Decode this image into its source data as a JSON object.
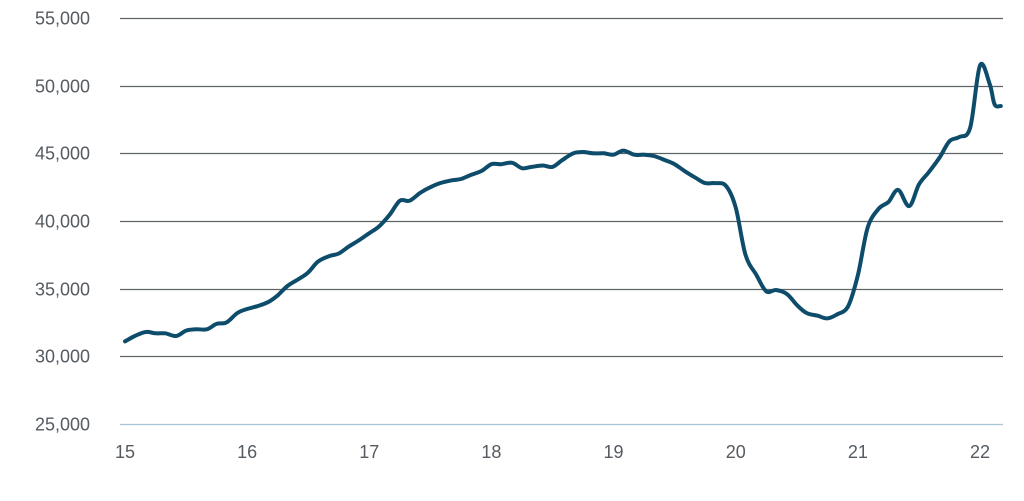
{
  "chart_data": {
    "type": "line",
    "title": "",
    "xlabel": "",
    "ylabel": "",
    "xlim": [
      15,
      22.2
    ],
    "ylim": [
      25000,
      55000
    ],
    "x_ticks": [
      15,
      16,
      17,
      18,
      19,
      20,
      21,
      22
    ],
    "x_tick_labels": [
      "15",
      "16",
      "17",
      "18",
      "19",
      "20",
      "21",
      "22"
    ],
    "y_ticks": [
      25000,
      30000,
      35000,
      40000,
      45000,
      50000,
      55000
    ],
    "y_tick_labels": [
      "25,000",
      "30,000",
      "35,000",
      "40,000",
      "45,000",
      "50,000",
      "55,000"
    ],
    "grid": "horizontal",
    "legend": "none",
    "colors": {
      "line": "#0e4c6b",
      "grid": "#5f6469",
      "baseline": "#a9c4d6",
      "tick_text": "#555b61"
    },
    "series": [
      {
        "x": [
          15.0,
          15.08,
          15.17,
          15.25,
          15.33,
          15.42,
          15.5,
          15.58,
          15.67,
          15.75,
          15.83,
          15.92,
          16.0,
          16.08,
          16.17,
          16.25,
          16.33,
          16.42,
          16.5,
          16.58,
          16.67,
          16.75,
          16.83,
          16.92,
          17.0,
          17.08,
          17.17,
          17.25,
          17.33,
          17.42,
          17.5,
          17.58,
          17.67,
          17.75,
          17.83,
          17.92,
          18.0,
          18.08,
          18.17,
          18.25,
          18.33,
          18.42,
          18.5,
          18.58,
          18.67,
          18.75,
          18.83,
          18.92,
          19.0,
          19.08,
          19.17,
          19.25,
          19.33,
          19.42,
          19.5,
          19.58,
          19.67,
          19.75,
          19.83,
          19.92,
          20.0,
          20.08,
          20.17,
          20.25,
          20.33,
          20.42,
          20.5,
          20.58,
          20.67,
          20.75,
          20.83,
          20.92,
          21.0,
          21.08,
          21.17,
          21.25,
          21.33,
          21.42,
          21.5,
          21.58,
          21.67,
          21.75,
          21.83,
          21.92,
          22.0,
          22.08,
          22.12,
          22.17
        ],
        "values": [
          31100,
          31500,
          31800,
          31700,
          31700,
          31500,
          31900,
          32000,
          32000,
          32400,
          32500,
          33200,
          33500,
          33700,
          34000,
          34500,
          35200,
          35700,
          36200,
          37000,
          37400,
          37600,
          38100,
          38600,
          39100,
          39600,
          40500,
          41500,
          41500,
          42100,
          42500,
          42800,
          43000,
          43100,
          43400,
          43700,
          44200,
          44200,
          44300,
          43900,
          44000,
          44100,
          44000,
          44500,
          45000,
          45100,
          45000,
          45000,
          44900,
          45200,
          44900,
          44900,
          44800,
          44500,
          44200,
          43700,
          43200,
          42800,
          42800,
          42600,
          41000,
          37500,
          36000,
          34800,
          34900,
          34600,
          33800,
          33200,
          33000,
          32800,
          33100,
          33700,
          36000,
          39500,
          40900,
          41400,
          42300,
          41100,
          42700,
          43600,
          44700,
          45900,
          46200,
          46900,
          51500,
          50100,
          48600,
          48500
        ]
      }
    ]
  }
}
